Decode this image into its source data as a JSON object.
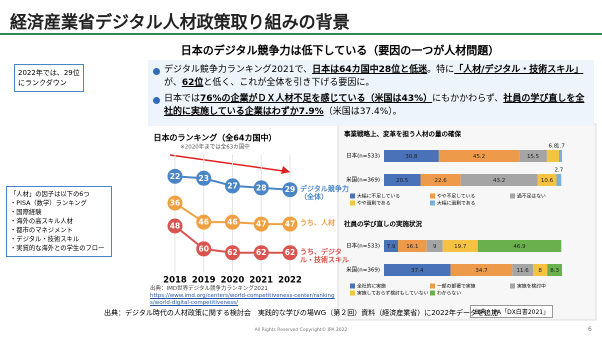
{
  "title": "経済産業省デジタル人材政策取り組みの背景",
  "headline": "日本のデジタル競争力は低下している（要因の一つが人材問題）",
  "note": "2022年では、29位にランクダウン",
  "bullets": [
    [
      {
        "text": "デジタル競争力ランキング2021で、"
      },
      {
        "text": "日本は64カ国中28位と低迷",
        "bold": true
      },
      {
        "text": "。特に"
      },
      {
        "text": "「人材/デジタル・技術スキル」",
        "bold": true
      },
      {
        "text": "が、"
      },
      {
        "text": "62位",
        "bold": true
      },
      {
        "text": "と低く、これが全体を引き下げる要因に。"
      }
    ],
    [
      {
        "text": "日本では"
      },
      {
        "text": "76%の企業がＤＸ人材不足を感じている（米国は43%）",
        "bold": true
      },
      {
        "text": "にもかかわらず、"
      },
      {
        "text": "社員の学び直しを全社的に実施している企業はわずか7.9%",
        "bold": true
      },
      {
        "text": "（米国は37.4%）。"
      }
    ]
  ],
  "ranking_chart": {
    "type": "line",
    "title": "日本のランキング（全64カ国中）",
    "subtitle": "※2020年までは全63カ国中",
    "categories": [
      "2018",
      "2019",
      "2020",
      "2021",
      "2022"
    ],
    "ylim": [
      15,
      70
    ],
    "series": [
      {
        "name": "デジタル競争力（全体）",
        "color": "#4a86c5",
        "values": [
          22,
          23,
          27,
          28,
          29
        ]
      },
      {
        "name": "うち、人材",
        "color": "#f0a040",
        "values": [
          36,
          46,
          46,
          47,
          47
        ]
      },
      {
        "name": "うち、デジタル・技術スキル",
        "color": "#d9534f",
        "values": [
          48,
          60,
          62,
          62,
          62
        ]
      }
    ],
    "source": "出典：IMD世界デジタル競争力ランキング2021",
    "url": "https://www.imd.org/centers/world-competitiveness-center/rankings/world-digital-competitiveness/"
  },
  "factors": {
    "title": "「人材」の因子は以下の6つ",
    "items": [
      "・PISA（数学）ランキング",
      "・国際経験",
      "・海外の高スキル人材",
      "・都市のマネジメント",
      "・デジタル・技術スキル",
      "・実質的な海外との学生のフロー"
    ]
  },
  "survey_charts": [
    {
      "type": "stacked-bar",
      "title": "事業戦略上、変革を担う人材の量の確保",
      "categories": [
        "日本(n=533)",
        "米国(n=369)"
      ],
      "xlim": [
        0,
        100
      ],
      "series": [
        {
          "name": "大幅に不足している",
          "color": "#4a72b8",
          "values": [
            30.8,
            20.5
          ]
        },
        {
          "name": "やや不足している",
          "color": "#ed9a4a",
          "values": [
            45.2,
            22.6
          ]
        },
        {
          "name": "過不足はない",
          "color": "#a5a5a5",
          "values": [
            15.5,
            43.2
          ]
        },
        {
          "name": "やや過剰である",
          "color": "#f5c242",
          "values": [
            6.8,
            10.6
          ]
        },
        {
          "name": "大幅に過剰である",
          "color": "#7ab0dd",
          "values": [
            1.7,
            2.7
          ]
        }
      ]
    },
    {
      "type": "stacked-bar",
      "title": "社員の学び直しの実施状況",
      "categories": [
        "日本(n=533)",
        "米国(n=369)"
      ],
      "xlim": [
        0,
        100
      ],
      "series": [
        {
          "name": "全社的に実施",
          "color": "#4a72b8",
          "values": [
            7.9,
            37.4
          ]
        },
        {
          "name": "一部の部署で実施",
          "color": "#ed9a4a",
          "values": [
            16.1,
            34.7
          ]
        },
        {
          "name": "実施を検討中",
          "color": "#a5a5a5",
          "values": [
            9.0,
            11.6
          ]
        },
        {
          "name": "実施しておらず検討もしていない",
          "color": "#f5c242",
          "values": [
            19.7,
            8.0
          ]
        },
        {
          "name": "わからない",
          "color": "#6ab04c",
          "values": [
            46.9,
            8.3
          ]
        }
      ]
    }
  ],
  "survey_source": "出典：IPA「DX白書2021」",
  "source": "出典：デジタル時代の人材政策に関する検討会　実践的な学びの場WG（第２回）資料（経済産業省）に2022年データを追加",
  "footer": "All Rights Reserved Copyright© IPA 2022",
  "page": "6"
}
